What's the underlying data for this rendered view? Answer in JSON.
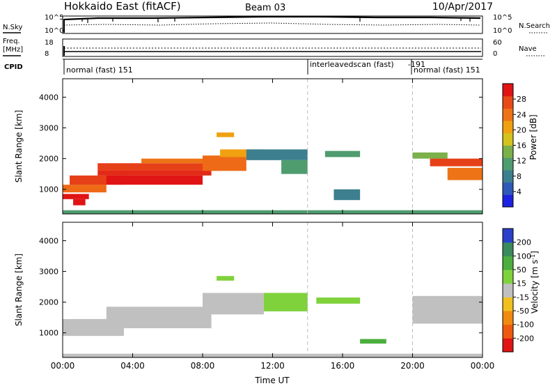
{
  "header": {
    "station": "Hokkaido East (fitACF)",
    "beam": "Beam 03",
    "date": "10/Apr/2017"
  },
  "top_panels": {
    "nsky_label": "N.Sky",
    "nsearch_label": "N.Search",
    "nsky_ticks": [
      "10^5",
      "10^0"
    ],
    "nsearch_ticks": [
      "10^5",
      "10^0"
    ],
    "freq_label_1": "Freq.",
    "freq_label_2": "[MHz]",
    "freq_ticks": [
      "18",
      "8"
    ],
    "nave_label": "Nave",
    "nave_ticks": [
      "60",
      "0"
    ],
    "cpid_label": "CPID",
    "cpid_segments": [
      "normal (fast) 151",
      "interleavedscan (fast)",
      "-191",
      "normal (fast) 151"
    ]
  },
  "chart_data": [
    {
      "type": "heatmap",
      "name": "power-panel",
      "ylabel": "Slant Range [km]",
      "xlabel": "",
      "x_ticks": [
        "00:00",
        "04:00",
        "08:00",
        "12:00",
        "16:00",
        "20:00",
        "00:00"
      ],
      "x_tick_hours": [
        0,
        4,
        8,
        12,
        16,
        20,
        24
      ],
      "ylim": [
        200,
        4600
      ],
      "y_ticks": [
        1000,
        2000,
        3000,
        4000
      ],
      "colorbar": {
        "label": "Power [dB]",
        "ticks": [
          "4",
          "8",
          "12",
          "16",
          "20",
          "24",
          "28"
        ],
        "colors": [
          "#1e22e0",
          "#2f59b8",
          "#3d7f8e",
          "#4f9c6f",
          "#7bb04a",
          "#d4c21e",
          "#f0a010",
          "#ee7316",
          "#e84a18",
          "#e01414"
        ]
      },
      "bands": [
        {
          "t0": 0.0,
          "t1": 1.5,
          "r0": 680,
          "r1": 850,
          "color": "#e01414"
        },
        {
          "t0": 0.6,
          "t1": 1.3,
          "r0": 480,
          "r1": 680,
          "color": "#e01414"
        },
        {
          "t0": 0.0,
          "t1": 2.5,
          "r0": 900,
          "r1": 1150,
          "color": "#ee6a16"
        },
        {
          "t0": 0.4,
          "t1": 3.5,
          "r0": 1150,
          "r1": 1450,
          "color": "#e64018"
        },
        {
          "t0": 2.5,
          "t1": 8.0,
          "r0": 1150,
          "r1": 1450,
          "color": "#e01414"
        },
        {
          "t0": 2.0,
          "t1": 8.5,
          "r0": 1450,
          "r1": 1620,
          "color": "#e22a16"
        },
        {
          "t0": 2.0,
          "t1": 8.0,
          "r0": 1620,
          "r1": 1850,
          "color": "#e64018"
        },
        {
          "t0": 4.5,
          "t1": 9.5,
          "r0": 1850,
          "r1": 2000,
          "color": "#ee7316"
        },
        {
          "t0": 8.0,
          "t1": 10.5,
          "r0": 1600,
          "r1": 2100,
          "color": "#ee6a16"
        },
        {
          "t0": 9.0,
          "t1": 11.5,
          "r0": 2050,
          "r1": 2300,
          "color": "#f0a010"
        },
        {
          "t0": 8.8,
          "t1": 9.8,
          "r0": 2700,
          "r1": 2850,
          "color": "#f0a010"
        },
        {
          "t0": 10.5,
          "t1": 14.0,
          "r0": 1950,
          "r1": 2300,
          "color": "#3d7f8e"
        },
        {
          "t0": 12.5,
          "t1": 14.0,
          "r0": 1500,
          "r1": 1950,
          "color": "#4f9c6f"
        },
        {
          "t0": 15.0,
          "t1": 17.0,
          "r0": 2050,
          "r1": 2250,
          "color": "#4f9c6f"
        },
        {
          "t0": 15.5,
          "t1": 17.0,
          "r0": 650,
          "r1": 1000,
          "color": "#3d7f8e"
        },
        {
          "t0": 20.0,
          "t1": 22.0,
          "r0": 2000,
          "r1": 2200,
          "color": "#7bb04a"
        },
        {
          "t0": 21.0,
          "t1": 24.0,
          "r0": 1750,
          "r1": 2000,
          "color": "#e64018"
        },
        {
          "t0": 22.0,
          "t1": 24.0,
          "r0": 1300,
          "r1": 1700,
          "color": "#ee7316"
        },
        {
          "t0": 0.0,
          "t1": 24.0,
          "r0": 200,
          "r1": 320,
          "color": "#4f9c6f"
        }
      ]
    },
    {
      "type": "heatmap",
      "name": "velocity-panel",
      "ylabel": "Slant Range [km]",
      "xlabel": "Time UT",
      "x_ticks": [
        "00:00",
        "04:00",
        "08:00",
        "12:00",
        "16:00",
        "20:00",
        "00:00"
      ],
      "x_tick_hours": [
        0,
        4,
        8,
        12,
        16,
        20,
        24
      ],
      "ylim": [
        200,
        4600
      ],
      "y_ticks": [
        1000,
        2000,
        3000,
        4000
      ],
      "colorbar": {
        "label": "Velocity [m s^-1]",
        "ticks": [
          "200",
          "100",
          "50",
          "15",
          "-15",
          "-50",
          "-100",
          "-200"
        ],
        "colors": [
          "#2a40c8",
          "#3a8a5e",
          "#4cae3e",
          "#7fd23c",
          "#c0c0c0",
          "#f0c020",
          "#f08a10",
          "#ee5a10",
          "#e01414"
        ]
      },
      "bands": [
        {
          "t0": 0.0,
          "t1": 3.5,
          "r0": 900,
          "r1": 1450,
          "color": "#c0c0c0"
        },
        {
          "t0": 2.5,
          "t1": 8.5,
          "r0": 1150,
          "r1": 1850,
          "color": "#c0c0c0"
        },
        {
          "t0": 8.0,
          "t1": 11.5,
          "r0": 1600,
          "r1": 2300,
          "color": "#c0c0c0"
        },
        {
          "t0": 8.8,
          "t1": 9.8,
          "r0": 2700,
          "r1": 2850,
          "color": "#7fd23c"
        },
        {
          "t0": 11.5,
          "t1": 14.0,
          "r0": 1700,
          "r1": 2300,
          "color": "#7fd23c"
        },
        {
          "t0": 14.5,
          "t1": 17.0,
          "r0": 1950,
          "r1": 2150,
          "color": "#7fd23c"
        },
        {
          "t0": 17.0,
          "t1": 18.5,
          "r0": 650,
          "r1": 800,
          "color": "#4cae3e"
        },
        {
          "t0": 20.0,
          "t1": 24.0,
          "r0": 1300,
          "r1": 2200,
          "color": "#c0c0c0"
        },
        {
          "t0": 0.0,
          "t1": 24.0,
          "r0": 200,
          "r1": 320,
          "color": "#c0c0c0"
        }
      ]
    }
  ]
}
